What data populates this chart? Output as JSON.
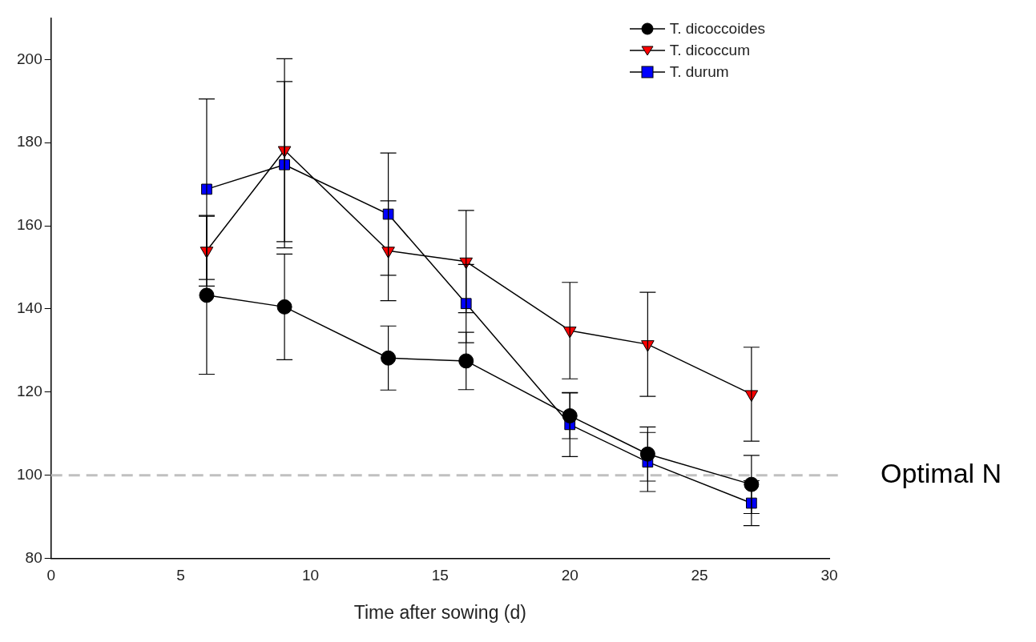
{
  "chart_data": {
    "type": "line",
    "xlabel": "Time after sowing (d)",
    "xlim": [
      0,
      30
    ],
    "xticks": [
      0,
      5,
      10,
      15,
      20,
      25,
      30
    ],
    "ylim": [
      80,
      210
    ],
    "yticks": [
      80,
      100,
      120,
      140,
      160,
      180,
      200
    ],
    "x": [
      6,
      9,
      13,
      16,
      20,
      23,
      27
    ],
    "grid": false,
    "legend": "top right",
    "line_style": "solid",
    "series": [
      {
        "name": "T. dicoccoides",
        "color": "#000000",
        "marker": "circle",
        "values": [
          143.3,
          140.5,
          128.2,
          127.5,
          114.3,
          105.1,
          97.8
        ],
        "errors": [
          19,
          12.7,
          7.7,
          6.9,
          5.5,
          6.5,
          7
        ]
      },
      {
        "name": "T. dicoccum",
        "color": "#ff0000",
        "marker": "triangle",
        "values": [
          154,
          178.2,
          154,
          151.4,
          134.8,
          131.5,
          119.5
        ],
        "errors": [
          8.5,
          22,
          12,
          12.3,
          11.6,
          12.5,
          11.3
        ]
      },
      {
        "name": "T. durum",
        "color": "#0000ff",
        "marker": "square",
        "values": [
          168.8,
          174.7,
          162.8,
          141.3,
          112.2,
          103.2,
          93.3
        ],
        "errors": [
          21.7,
          20,
          14.7,
          9.4,
          7.7,
          7.1,
          5.4
        ]
      }
    ],
    "ref_lines": [
      {
        "axis": "y",
        "value": 100,
        "label": "Optimal N",
        "color": "#c0c0c0",
        "line_style": "dashed"
      }
    ]
  }
}
